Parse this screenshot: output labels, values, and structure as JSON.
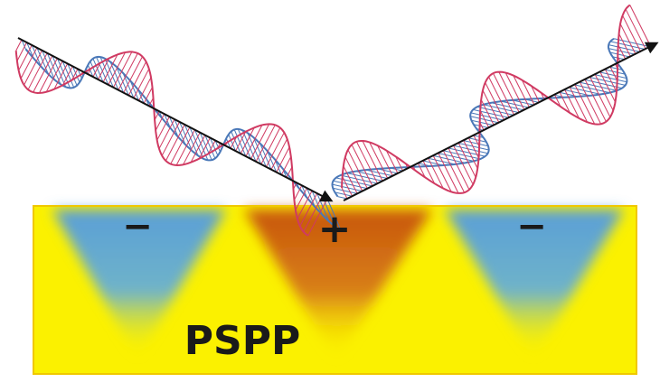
{
  "charges": {
    "left": "−",
    "center": "+",
    "right": "−"
  },
  "region_label": "PSPP",
  "colors": {
    "metal": "#fbf100",
    "metal_border": "#f0c800",
    "negative_charge": "#5a9fd6",
    "positive_charge": "#c8560a",
    "electric_field": "#d03a62",
    "magnetic_field": "#4a78b8",
    "wave_vector": "#111111"
  },
  "icons": {
    "incident_wave": "incident-em-wave-icon",
    "reflected_wave": "reflected-em-wave-icon"
  }
}
